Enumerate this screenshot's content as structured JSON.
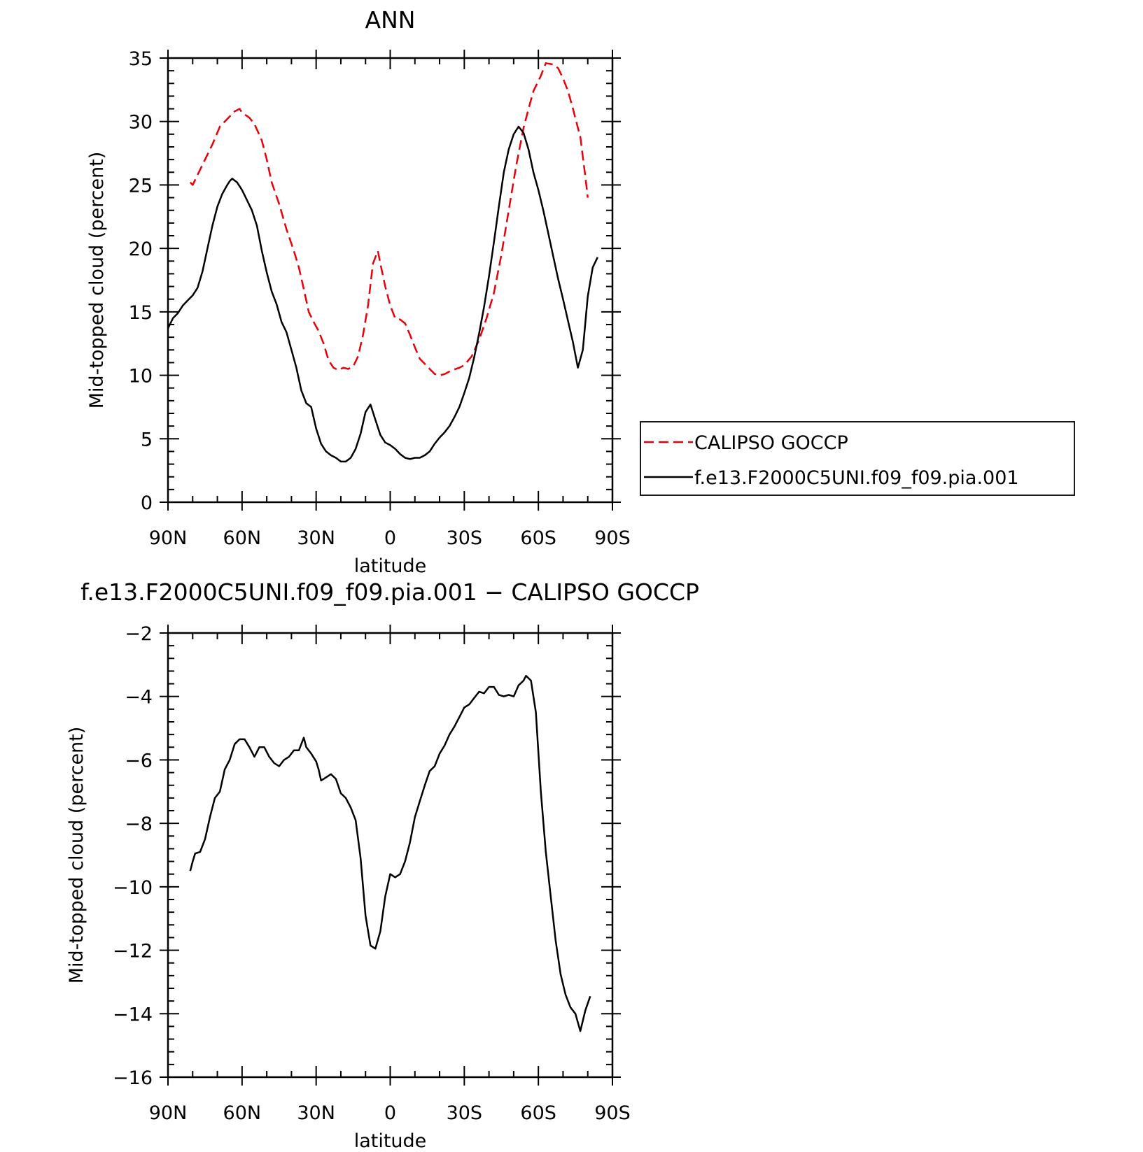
{
  "chart_data": [
    {
      "type": "line",
      "title": "ANN",
      "xlabel": "latitude",
      "ylabel": "Mid-topped cloud (percent)",
      "xlim": [
        90,
        -90
      ],
      "ylim": [
        0,
        35
      ],
      "x_ticks": [
        90,
        60,
        30,
        0,
        -30,
        -60,
        -90
      ],
      "x_tick_labels": [
        "90N",
        "60N",
        "30N",
        "0",
        "30S",
        "60S",
        "90S"
      ],
      "y_ticks": [
        0,
        5,
        10,
        15,
        20,
        25,
        30,
        35
      ],
      "y_tick_labels": [
        "0",
        "5",
        "10",
        "15",
        "20",
        "25",
        "30",
        "35"
      ],
      "grid": false,
      "legend": {
        "placement": "outside-right",
        "entries": [
          {
            "label": "CALIPSO GOCCP",
            "color": "#e8000b",
            "dash": "dashed"
          },
          {
            "label": "f.e13.F2000C5UNI.f09_f09.pia.001",
            "color": "#000000",
            "dash": "solid"
          }
        ]
      },
      "series": [
        {
          "name": "CALIPSO GOCCP",
          "color": "#e8000b",
          "dash": "dashed",
          "points": [
            [
              81,
              25.2
            ],
            [
              80,
              25.0
            ],
            [
              78,
              25.8
            ],
            [
              75,
              27.0
            ],
            [
              72,
              28.2
            ],
            [
              69,
              29.6
            ],
            [
              66,
              30.2
            ],
            [
              63,
              30.8
            ],
            [
              61,
              31.0
            ],
            [
              60,
              30.7
            ],
            [
              57,
              30.3
            ],
            [
              55,
              29.8
            ],
            [
              52,
              28.5
            ],
            [
              50,
              27.0
            ],
            [
              48,
              25.2
            ],
            [
              45,
              23.5
            ],
            [
              42,
              21.5
            ],
            [
              39,
              19.8
            ],
            [
              37,
              18.5
            ],
            [
              35,
              16.8
            ],
            [
              33,
              15.0
            ],
            [
              31,
              14.2
            ],
            [
              29,
              13.5
            ],
            [
              27,
              12.5
            ],
            [
              25,
              11.2
            ],
            [
              23,
              10.6
            ],
            [
              21,
              10.4
            ],
            [
              19,
              10.6
            ],
            [
              17,
              10.5
            ],
            [
              15,
              10.7
            ],
            [
              13,
              11.5
            ],
            [
              11,
              13.2
            ],
            [
              9,
              15.5
            ],
            [
              7,
              18.8
            ],
            [
              6,
              19.3
            ],
            [
              5,
              19.8
            ],
            [
              4,
              18.8
            ],
            [
              2,
              17.0
            ],
            [
              0,
              15.5
            ],
            [
              -2,
              14.5
            ],
            [
              -4,
              14.4
            ],
            [
              -6,
              14.1
            ],
            [
              -8,
              13.2
            ],
            [
              -10,
              12.2
            ],
            [
              -12,
              11.3
            ],
            [
              -14,
              10.9
            ],
            [
              -16,
              10.5
            ],
            [
              -18,
              10.1
            ],
            [
              -20,
              10.0
            ],
            [
              -22,
              10.1
            ],
            [
              -25,
              10.4
            ],
            [
              -28,
              10.6
            ],
            [
              -30,
              10.8
            ],
            [
              -33,
              11.5
            ],
            [
              -36,
              12.8
            ],
            [
              -39,
              14.5
            ],
            [
              -42,
              16.5
            ],
            [
              -45,
              19.5
            ],
            [
              -48,
              23.0
            ],
            [
              -51,
              26.5
            ],
            [
              -54,
              29.5
            ],
            [
              -56,
              31.0
            ],
            [
              -58,
              32.4
            ],
            [
              -60,
              33.2
            ],
            [
              -61,
              33.6
            ],
            [
              -62,
              34.1
            ],
            [
              -63,
              34.6
            ],
            [
              -66,
              34.5
            ],
            [
              -68,
              34.2
            ],
            [
              -70,
              33.4
            ],
            [
              -72,
              32.4
            ],
            [
              -74,
              31.0
            ],
            [
              -76,
              29.5
            ],
            [
              -77,
              28.8
            ],
            [
              -78,
              27.2
            ],
            [
              -79,
              25.7
            ],
            [
              -80,
              24.0
            ]
          ]
        },
        {
          "name": "f.e13.F2000C5UNI.f09_f09.pia.001",
          "color": "#000000",
          "dash": "solid",
          "points": [
            [
              90,
              13.7
            ],
            [
              88,
              14.5
            ],
            [
              86,
              14.9
            ],
            [
              84,
              15.5
            ],
            [
              82,
              15.9
            ],
            [
              80,
              16.3
            ],
            [
              78,
              16.9
            ],
            [
              76,
              18.2
            ],
            [
              74,
              20.0
            ],
            [
              72,
              21.8
            ],
            [
              70,
              23.3
            ],
            [
              68,
              24.3
            ],
            [
              66,
              25.0
            ],
            [
              65,
              25.3
            ],
            [
              64,
              25.5
            ],
            [
              62,
              25.2
            ],
            [
              60,
              24.6
            ],
            [
              58,
              23.8
            ],
            [
              56,
              23.0
            ],
            [
              54,
              21.8
            ],
            [
              52,
              19.8
            ],
            [
              50,
              18.1
            ],
            [
              48,
              16.6
            ],
            [
              46,
              15.6
            ],
            [
              44,
              14.2
            ],
            [
              42,
              13.4
            ],
            [
              40,
              12.0
            ],
            [
              38,
              10.6
            ],
            [
              36,
              8.8
            ],
            [
              34,
              7.8
            ],
            [
              32,
              7.5
            ],
            [
              30,
              5.8
            ],
            [
              28,
              4.6
            ],
            [
              26,
              4.0
            ],
            [
              24,
              3.7
            ],
            [
              22,
              3.5
            ],
            [
              20,
              3.2
            ],
            [
              18,
              3.2
            ],
            [
              16,
              3.5
            ],
            [
              14,
              4.2
            ],
            [
              12,
              5.4
            ],
            [
              10,
              7.1
            ],
            [
              8,
              7.7
            ],
            [
              6,
              6.5
            ],
            [
              4,
              5.3
            ],
            [
              2,
              4.7
            ],
            [
              0,
              4.5
            ],
            [
              -2,
              4.2
            ],
            [
              -4,
              3.8
            ],
            [
              -6,
              3.5
            ],
            [
              -8,
              3.4
            ],
            [
              -10,
              3.5
            ],
            [
              -12,
              3.5
            ],
            [
              -14,
              3.7
            ],
            [
              -16,
              4.0
            ],
            [
              -18,
              4.6
            ],
            [
              -20,
              5.1
            ],
            [
              -22,
              5.5
            ],
            [
              -24,
              6.0
            ],
            [
              -26,
              6.7
            ],
            [
              -28,
              7.5
            ],
            [
              -30,
              8.6
            ],
            [
              -32,
              9.8
            ],
            [
              -34,
              11.4
            ],
            [
              -36,
              13.3
            ],
            [
              -38,
              15.4
            ],
            [
              -40,
              17.8
            ],
            [
              -42,
              20.5
            ],
            [
              -44,
              23.3
            ],
            [
              -46,
              26.0
            ],
            [
              -48,
              27.8
            ],
            [
              -50,
              29.0
            ],
            [
              -52,
              29.6
            ],
            [
              -54,
              29.1
            ],
            [
              -56,
              27.8
            ],
            [
              -58,
              26.0
            ],
            [
              -60,
              24.6
            ],
            [
              -62,
              23.0
            ],
            [
              -64,
              21.2
            ],
            [
              -66,
              19.4
            ],
            [
              -68,
              17.6
            ],
            [
              -70,
              16.0
            ],
            [
              -72,
              14.3
            ],
            [
              -74,
              12.6
            ],
            [
              -76,
              10.6
            ],
            [
              -78,
              12.0
            ],
            [
              -80,
              16.2
            ],
            [
              -82,
              18.5
            ],
            [
              -84,
              19.3
            ]
          ]
        }
      ]
    },
    {
      "type": "line",
      "title": "f.e13.F2000C5UNI.f09_f09.pia.001 - CALIPSO GOCCP",
      "xlabel": "latitude",
      "ylabel": "Mid-topped cloud (percent)",
      "xlim": [
        90,
        -90
      ],
      "ylim": [
        -16,
        -2
      ],
      "x_ticks": [
        90,
        60,
        30,
        0,
        -30,
        -60,
        -90
      ],
      "x_tick_labels": [
        "90N",
        "60N",
        "30N",
        "0",
        "30S",
        "60S",
        "90S"
      ],
      "y_ticks": [
        -16,
        -14,
        -12,
        -10,
        -8,
        -6,
        -4,
        -2
      ],
      "y_tick_labels": [
        "-16",
        "-14",
        "-12",
        "-10",
        "-8",
        "-6",
        "-4",
        "-2"
      ],
      "grid": false,
      "series": [
        {
          "color": "#000000",
          "dash": "solid",
          "points": [
            [
              81,
              -9.5
            ],
            [
              80,
              -9.2
            ],
            [
              79,
              -8.95
            ],
            [
              77,
              -8.9
            ],
            [
              75,
              -8.5
            ],
            [
              73,
              -7.8
            ],
            [
              71,
              -7.2
            ],
            [
              69,
              -7.0
            ],
            [
              67,
              -6.3
            ],
            [
              65,
              -6.0
            ],
            [
              63,
              -5.5
            ],
            [
              61,
              -5.35
            ],
            [
              59,
              -5.35
            ],
            [
              57,
              -5.6
            ],
            [
              55,
              -5.9
            ],
            [
              53,
              -5.6
            ],
            [
              51,
              -5.6
            ],
            [
              49,
              -5.9
            ],
            [
              47,
              -6.1
            ],
            [
              45,
              -6.2
            ],
            [
              43,
              -6.0
            ],
            [
              41,
              -5.9
            ],
            [
              39,
              -5.7
            ],
            [
              37,
              -5.7
            ],
            [
              35,
              -5.3
            ],
            [
              34,
              -5.6
            ],
            [
              32,
              -5.8
            ],
            [
              30,
              -6.05
            ],
            [
              29,
              -6.3
            ],
            [
              28,
              -6.65
            ],
            [
              26,
              -6.55
            ],
            [
              24,
              -6.45
            ],
            [
              22,
              -6.6
            ],
            [
              20,
              -7.05
            ],
            [
              18,
              -7.2
            ],
            [
              16,
              -7.5
            ],
            [
              14,
              -7.9
            ],
            [
              12,
              -9.1
            ],
            [
              10,
              -10.9
            ],
            [
              8,
              -11.85
            ],
            [
              6,
              -11.95
            ],
            [
              4,
              -11.4
            ],
            [
              2,
              -10.3
            ],
            [
              0,
              -9.6
            ],
            [
              -2,
              -9.7
            ],
            [
              -4,
              -9.6
            ],
            [
              -6,
              -9.2
            ],
            [
              -8,
              -8.6
            ],
            [
              -10,
              -7.8
            ],
            [
              -12,
              -7.3
            ],
            [
              -14,
              -6.8
            ],
            [
              -16,
              -6.35
            ],
            [
              -18,
              -6.2
            ],
            [
              -20,
              -5.8
            ],
            [
              -22,
              -5.55
            ],
            [
              -24,
              -5.2
            ],
            [
              -26,
              -4.95
            ],
            [
              -28,
              -4.65
            ],
            [
              -30,
              -4.35
            ],
            [
              -32,
              -4.25
            ],
            [
              -34,
              -4.05
            ],
            [
              -36,
              -3.85
            ],
            [
              -38,
              -3.9
            ],
            [
              -40,
              -3.7
            ],
            [
              -42,
              -3.7
            ],
            [
              -44,
              -3.95
            ],
            [
              -46,
              -4.0
            ],
            [
              -48,
              -3.95
            ],
            [
              -50,
              -4.0
            ],
            [
              -52,
              -3.65
            ],
            [
              -54,
              -3.5
            ],
            [
              -55,
              -3.35
            ],
            [
              -57,
              -3.5
            ],
            [
              -59,
              -4.5
            ],
            [
              -61,
              -7.0
            ],
            [
              -63,
              -8.9
            ],
            [
              -65,
              -10.3
            ],
            [
              -67,
              -11.7
            ],
            [
              -69,
              -12.75
            ],
            [
              -71,
              -13.4
            ],
            [
              -73,
              -13.8
            ],
            [
              -75,
              -14.0
            ],
            [
              -77,
              -14.55
            ],
            [
              -79,
              -13.9
            ],
            [
              -81,
              -13.45
            ]
          ]
        }
      ]
    }
  ]
}
